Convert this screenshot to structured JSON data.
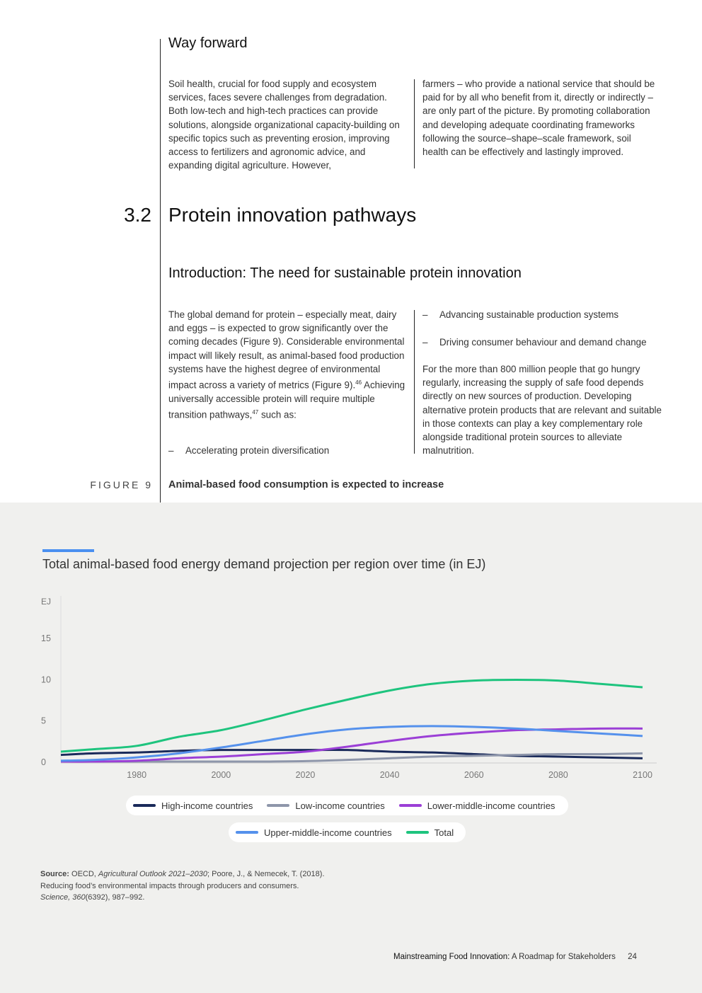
{
  "way_forward": {
    "title": "Way forward",
    "col1": "Soil health, crucial for food supply and ecosystem services, faces severe challenges from degradation. Both low-tech and high-tech practices can provide solutions, alongside organizational capacity-building on specific topics such as preventing erosion, improving access to fertilizers and agronomic advice, and expanding digital agriculture. However,",
    "col2": "farmers – who provide a national service that should be paid for by all who benefit from it, directly or indirectly – are only part of the picture. By promoting collaboration and developing adequate coordinating frameworks following the source–shape–scale framework, soil health can be effectively and lastingly improved."
  },
  "section": {
    "number": "3.2",
    "title": "Protein innovation pathways"
  },
  "intro": {
    "title": "Introduction: The need for sustainable protein innovation",
    "p1a": "The global demand for protein – especially meat, dairy and eggs – is expected to grow significantly over the coming decades (Figure 9). Considerable environmental impact will likely result, as animal-based food production systems have the highest degree of environmental impact across a variety of metrics (Figure 9).",
    "ref1": "46",
    "p1b": " Achieving universally accessible protein will require multiple transition pathways,",
    "ref2": "47",
    "p1c": " such as:",
    "bullet_dash": "–",
    "bullets": [
      "Accelerating protein diversification",
      "Advancing sustainable production systems",
      "Driving consumer behaviour and demand change"
    ],
    "p2": "For the more than 800 million people that go hungry regularly, increasing the supply of safe food depends directly on new sources of production. Developing alternative protein products that are relevant and suitable in those contexts can play a key complementary role alongside traditional protein sources to alleviate malnutrition."
  },
  "figure": {
    "label": "FIGURE 9",
    "title": "Animal-based food consumption is expected to increase"
  },
  "chart_data": {
    "type": "line",
    "title": "Total animal-based food energy demand projection per region over time (in EJ)",
    "ylabel": "EJ",
    "xlim": [
      1962,
      2100
    ],
    "ylim": [
      0,
      20
    ],
    "x_ticks": [
      1980,
      2000,
      2020,
      2040,
      2060,
      2080,
      2100
    ],
    "y_ticks": [
      0,
      5,
      10,
      15
    ],
    "grid": false,
    "legend_position": "bottom",
    "x": [
      1962,
      1970,
      1980,
      1990,
      2000,
      2010,
      2020,
      2030,
      2040,
      2050,
      2060,
      2070,
      2080,
      2090,
      2100
    ],
    "series": [
      {
        "name": "High-income countries",
        "color": "#1a2a5a",
        "values": [
          0.8,
          1.0,
          1.1,
          1.3,
          1.4,
          1.4,
          1.4,
          1.4,
          1.2,
          1.1,
          0.9,
          0.7,
          0.6,
          0.5,
          0.4
        ]
      },
      {
        "name": "Low-income countries",
        "color": "#8e96aa",
        "values": [
          0,
          0,
          0,
          0,
          0,
          0,
          0.05,
          0.2,
          0.4,
          0.6,
          0.7,
          0.8,
          0.9,
          0.9,
          1.0
        ]
      },
      {
        "name": "Lower-middle-income countries",
        "color": "#9b3fd6",
        "values": [
          0,
          0,
          0.1,
          0.4,
          0.6,
          0.9,
          1.2,
          1.8,
          2.5,
          3.1,
          3.5,
          3.8,
          3.9,
          4.0,
          4.0
        ]
      },
      {
        "name": "Upper-middle-income countries",
        "color": "#5591ec",
        "values": [
          0.1,
          0.2,
          0.5,
          1.0,
          1.7,
          2.5,
          3.3,
          3.9,
          4.2,
          4.3,
          4.2,
          4.0,
          3.7,
          3.4,
          3.1
        ]
      },
      {
        "name": "Total",
        "color": "#1ec47e",
        "values": [
          1.2,
          1.5,
          1.9,
          3.0,
          3.8,
          5.0,
          6.3,
          7.5,
          8.6,
          9.4,
          9.8,
          9.9,
          9.8,
          9.4,
          9.0
        ]
      }
    ]
  },
  "source": {
    "label": "Source:",
    "t1": " OECD, ",
    "i1": "Agricultural Outlook 2021–2030",
    "t2": "; Poore, J., & Nemecek, T. (2018). Reducing food’s environmental impacts through producers and consumers. ",
    "i2": "Science, 360",
    "t3": "(6392), 987–992."
  },
  "footer": {
    "bold": "Mainstreaming Food Innovation:",
    "rest": " A Roadmap for Stakeholders",
    "page": "24"
  }
}
